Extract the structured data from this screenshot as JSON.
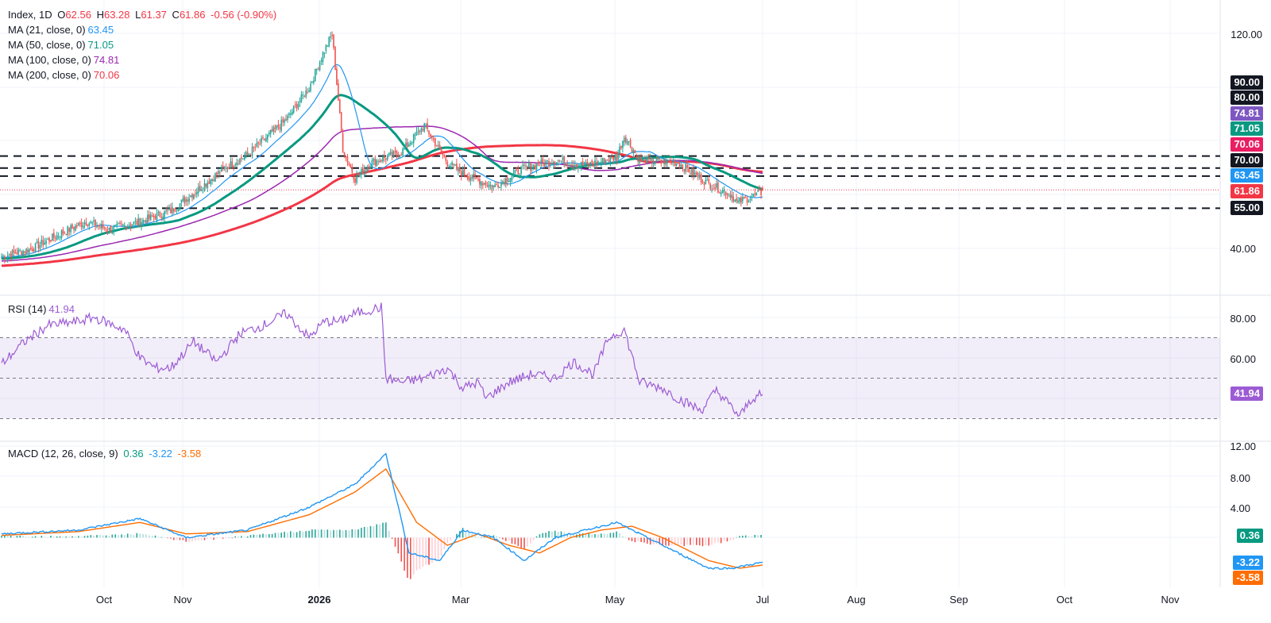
{
  "main_legend": {
    "symbol": "Index, 1D",
    "o_label": "O",
    "o": "62.56",
    "h_label": "H",
    "h": "63.28",
    "l_label": "L",
    "l": "61.37",
    "c_label": "C",
    "c": "61.86",
    "chg": "-0.56 (-0.90%)",
    "ma21_label": "MA (21, close, 0)",
    "ma21": "63.45",
    "ma50_label": "MA (50, close, 0)",
    "ma50": "71.05",
    "ma100_label": "MA (100, close, 0)",
    "ma100": "74.81",
    "ma200_label": "MA (200, close, 0)",
    "ma200": "70.06"
  },
  "rsi_legend": {
    "label": "RSI (14)",
    "value": "41.94"
  },
  "macd_legend": {
    "label": "MACD (12, 26, close, 9)",
    "hist": "0.36",
    "macd": "-3.22",
    "signal": "-3.58"
  },
  "price_axis": {
    "ticks": [
      "120.00",
      "40.00"
    ]
  },
  "rsi_axis": {
    "ticks": [
      "80.00",
      "60.00"
    ]
  },
  "macd_axis": {
    "ticks": [
      "12.00",
      "8.00",
      "4.00"
    ]
  },
  "price_labels": [
    "90.00",
    "80.00",
    "74.81",
    "71.05",
    "70.06",
    "70.00",
    "63.45",
    "61.86",
    "55.00"
  ],
  "rsi_label": "41.94",
  "macd_labels": [
    "0.36",
    "-3.22",
    "-3.58"
  ],
  "x_axis": [
    "Oct",
    "Nov",
    "2026",
    "Mar",
    "May",
    "Jul",
    "Aug",
    "Sep",
    "Oct",
    "Nov"
  ],
  "colors": {
    "up": "#26a69a",
    "down": "#ef5350",
    "ma21": "#2196f3",
    "ma50": "#089981",
    "ma100": "#9c27b0",
    "ma200": "#f23645",
    "rsi": "#9c5bd4",
    "macd": "#2196f3",
    "signal": "#ff6d00"
  },
  "chart_data": [
    {
      "type": "candlestick",
      "title": "Index, 1D",
      "ylim": [
        30,
        125
      ],
      "x_labels": [
        "Oct",
        "Nov",
        "2026",
        "Mar",
        "May",
        "Jul",
        "Aug",
        "Sep",
        "Oct",
        "Nov"
      ],
      "horizontal_levels": [
        90,
        80,
        70,
        55
      ],
      "last": {
        "open": 62.56,
        "high": 63.28,
        "low": 61.37,
        "close": 61.86,
        "change": -0.56,
        "change_pct": -0.9
      },
      "close_anchors": [
        [
          0,
          37
        ],
        [
          20,
          40
        ],
        [
          40,
          46
        ],
        [
          55,
          50
        ],
        [
          70,
          47
        ],
        [
          90,
          50
        ],
        [
          110,
          54
        ],
        [
          130,
          63
        ],
        [
          145,
          70
        ],
        [
          160,
          75
        ],
        [
          185,
          88
        ],
        [
          200,
          100
        ],
        [
          210,
          114
        ],
        [
          215,
          120
        ],
        [
          222,
          77
        ],
        [
          230,
          66
        ],
        [
          240,
          72
        ],
        [
          260,
          76
        ],
        [
          275,
          86
        ],
        [
          290,
          72
        ],
        [
          300,
          68
        ],
        [
          320,
          63
        ],
        [
          340,
          70
        ],
        [
          360,
          73
        ],
        [
          380,
          71
        ],
        [
          400,
          74
        ],
        [
          405,
          82
        ],
        [
          415,
          73
        ],
        [
          440,
          72
        ],
        [
          460,
          64
        ],
        [
          475,
          60
        ],
        [
          478,
          57
        ],
        [
          495,
          61
        ]
      ],
      "moving_averages": [
        {
          "name": "MA (21, close, 0)",
          "last": 63.45
        },
        {
          "name": "MA (50, close, 0)",
          "last": 71.05
        },
        {
          "name": "MA (100, close, 0)",
          "last": 74.81
        },
        {
          "name": "MA (200, close, 0)",
          "last": 70.06
        }
      ]
    },
    {
      "type": "line",
      "title": "RSI (14)",
      "ylim": [
        20,
        90
      ],
      "bands": [
        70,
        50,
        30
      ],
      "anchors": [
        [
          0,
          57
        ],
        [
          15,
          68
        ],
        [
          30,
          76
        ],
        [
          50,
          78
        ],
        [
          60,
          80
        ],
        [
          80,
          74
        ],
        [
          90,
          60
        ],
        [
          100,
          55
        ],
        [
          110,
          55
        ],
        [
          125,
          68
        ],
        [
          140,
          58
        ],
        [
          155,
          72
        ],
        [
          170,
          76
        ],
        [
          185,
          82
        ],
        [
          200,
          70
        ],
        [
          210,
          78
        ],
        [
          220,
          78
        ],
        [
          230,
          82
        ],
        [
          247,
          85
        ],
        [
          250,
          50
        ],
        [
          260,
          48
        ],
        [
          275,
          50
        ],
        [
          290,
          55
        ],
        [
          300,
          45
        ],
        [
          310,
          48
        ],
        [
          315,
          40
        ],
        [
          330,
          48
        ],
        [
          345,
          52
        ],
        [
          360,
          50
        ],
        [
          372,
          58
        ],
        [
          385,
          52
        ],
        [
          395,
          70
        ],
        [
          405,
          74
        ],
        [
          415,
          48
        ],
        [
          430,
          45
        ],
        [
          440,
          40
        ],
        [
          455,
          34
        ],
        [
          465,
          44
        ],
        [
          472,
          38
        ],
        [
          480,
          31
        ],
        [
          488,
          40
        ],
        [
          495,
          41.94
        ]
      ]
    },
    {
      "type": "line",
      "title": "MACD (12, 26, close, 9)",
      "ylim": [
        -4.5,
        13
      ],
      "macd_anchors": [
        [
          0,
          0.5
        ],
        [
          50,
          1
        ],
        [
          90,
          2.5
        ],
        [
          120,
          0
        ],
        [
          160,
          1
        ],
        [
          200,
          4
        ],
        [
          230,
          7
        ],
        [
          250,
          11
        ],
        [
          265,
          -2
        ],
        [
          285,
          -3
        ],
        [
          300,
          1
        ],
        [
          320,
          0
        ],
        [
          340,
          -3
        ],
        [
          360,
          0
        ],
        [
          380,
          1
        ],
        [
          400,
          2
        ],
        [
          420,
          0
        ],
        [
          440,
          -2
        ],
        [
          460,
          -4
        ],
        [
          475,
          -4
        ],
        [
          495,
          -3.22
        ]
      ],
      "signal_anchors": [
        [
          0,
          0.3
        ],
        [
          50,
          0.8
        ],
        [
          90,
          2
        ],
        [
          120,
          0.5
        ],
        [
          160,
          0.8
        ],
        [
          200,
          3
        ],
        [
          230,
          6
        ],
        [
          250,
          9
        ],
        [
          270,
          2
        ],
        [
          290,
          -1
        ],
        [
          310,
          0.5
        ],
        [
          330,
          -1
        ],
        [
          350,
          -2
        ],
        [
          370,
          0
        ],
        [
          390,
          1
        ],
        [
          410,
          1.5
        ],
        [
          430,
          0
        ],
        [
          460,
          -3
        ],
        [
          480,
          -4
        ],
        [
          495,
          -3.58
        ]
      ],
      "histogram_last": 0.36
    }
  ]
}
